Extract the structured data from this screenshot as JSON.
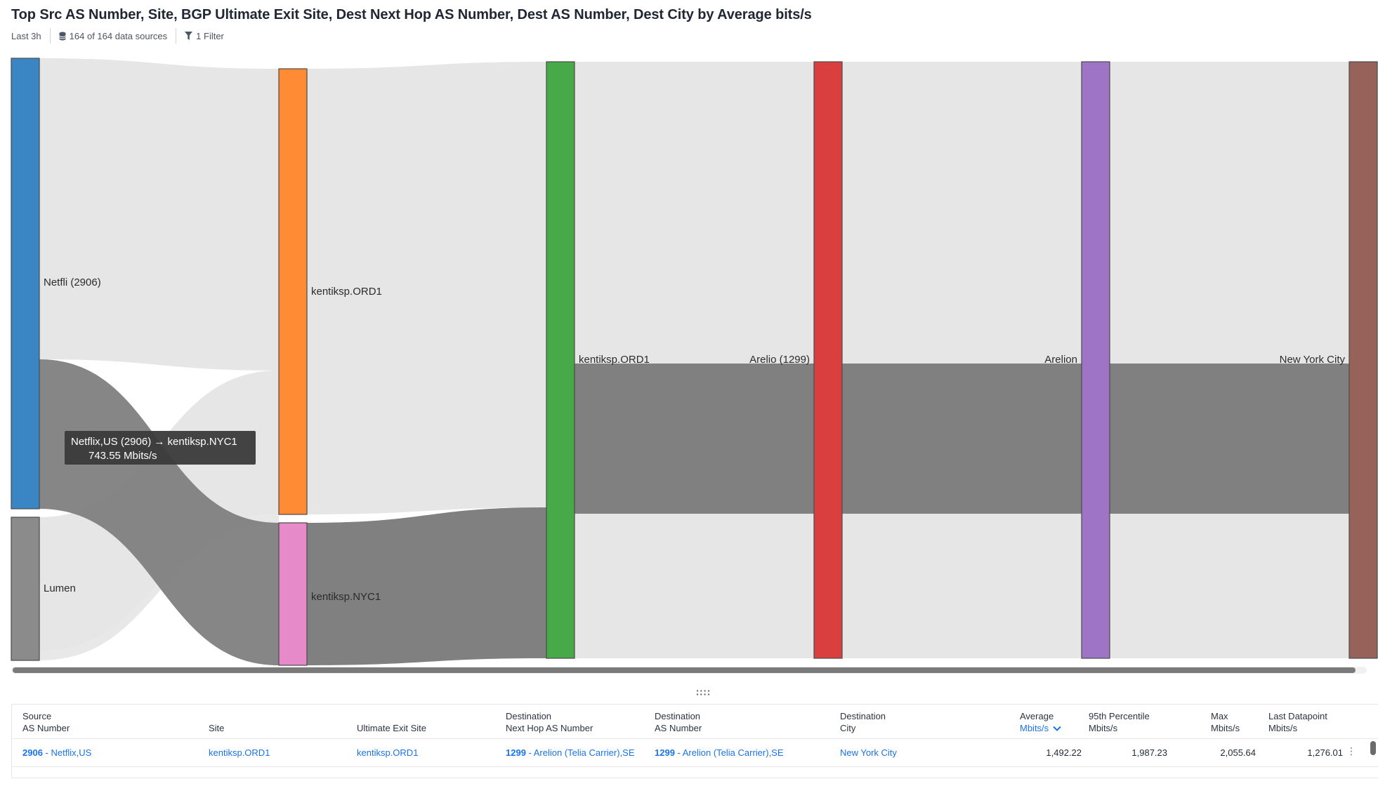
{
  "header": {
    "title": "Top Src AS Number, Site, BGP Ultimate Exit Site, Dest Next Hop AS Number, Dest AS Number, Dest City by Average bits/s",
    "time_range": "Last 3h",
    "data_sources": "164 of 164 data sources",
    "filters": "1 Filter"
  },
  "sankey": {
    "nodes": {
      "netflix": {
        "label": "Netfli (2906)",
        "color": "#3a86c4"
      },
      "lumen": {
        "label": "Lumen",
        "color": "#8b8b8b"
      },
      "ord1": {
        "label": "kentiksp.ORD1",
        "color": "#ff8c34"
      },
      "nyc1": {
        "label": "kentiksp.NYC1",
        "color": "#e78ac9"
      },
      "exit_ord1": {
        "label": "kentiksp.ORD1",
        "color": "#47a947"
      },
      "arelio": {
        "label": "Arelio (1299)",
        "color": "#d93f3f"
      },
      "arelion": {
        "label": "Arelion",
        "color": "#9e74c6"
      },
      "nyc": {
        "label": "New York City",
        "color": "#976259"
      }
    },
    "tooltip": {
      "line1": "Netflix,US (2906) → kentiksp.NYC1",
      "line2": "743.55 Mbits/s"
    },
    "link_colors": {
      "light": "#e6e6e6",
      "dark": "#808080"
    }
  },
  "table": {
    "headers": {
      "src_as_l1": "Source",
      "src_as_l2": "AS Number",
      "site": "Site",
      "exit": "Ultimate Exit Site",
      "nexthop_l1": "Destination",
      "nexthop_l2": "Next Hop AS Number",
      "dest_as_l1": "Destination",
      "dest_as_l2": "AS Number",
      "city_l1": "Destination",
      "city_l2": "City",
      "avg_l1": "Average",
      "avg_l2": "Mbits/s",
      "p95_l1": "95th Percentile",
      "p95_l2": "Mbits/s",
      "max_l1": "Max",
      "max_l2": "Mbits/s",
      "last_l1": "Last Datapoint",
      "last_l2": "Mbits/s"
    },
    "rows": [
      {
        "src_as_num": "2906",
        "src_as_name": " - Netflix,US",
        "site": "kentiksp.ORD1",
        "exit": "kentiksp.ORD1",
        "nexthop_num": "1299",
        "nexthop_name": " - Arelion (Telia Carrier),SE",
        "dest_as_num": "1299",
        "dest_as_name": " - Arelion (Telia Carrier),SE",
        "city": "New York City",
        "avg": "1,492.22",
        "p95": "1,987.23",
        "max": "2,055.64",
        "last": "1,276.01"
      }
    ]
  }
}
